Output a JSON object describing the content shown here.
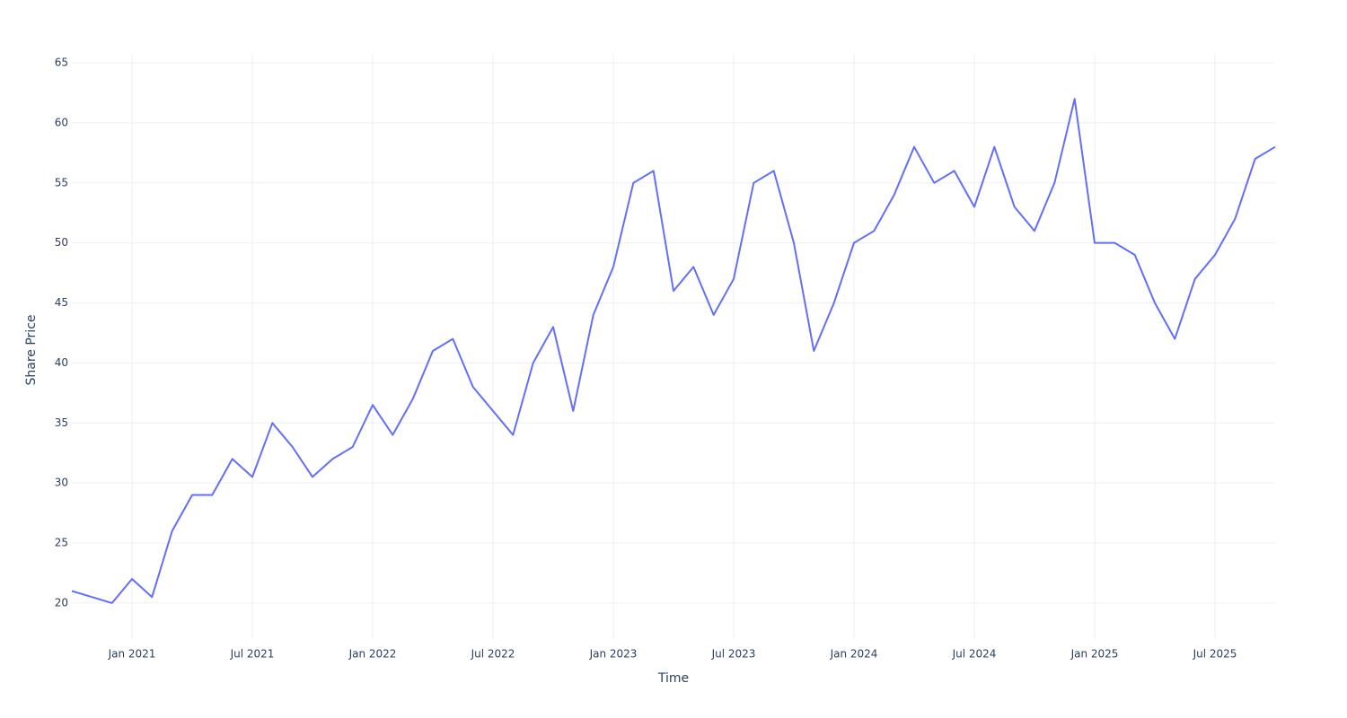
{
  "chart_data": {
    "type": "line",
    "x_label": "Time",
    "y_label": "Share Price",
    "x": [
      "2020-10",
      "2020-11",
      "2020-12",
      "2021-01",
      "2021-02",
      "2021-03",
      "2021-04",
      "2021-05",
      "2021-06",
      "2021-07",
      "2021-08",
      "2021-09",
      "2021-10",
      "2021-11",
      "2021-12",
      "2022-01",
      "2022-02",
      "2022-03",
      "2022-04",
      "2022-05",
      "2022-06",
      "2022-07",
      "2022-08",
      "2022-09",
      "2022-10",
      "2022-11",
      "2022-12",
      "2023-01",
      "2023-02",
      "2023-03",
      "2023-04",
      "2023-05",
      "2023-06",
      "2023-07",
      "2023-08",
      "2023-09",
      "2023-10",
      "2023-11",
      "2023-12",
      "2024-01",
      "2024-02",
      "2024-03",
      "2024-04",
      "2024-05",
      "2024-06",
      "2024-07",
      "2024-08",
      "2024-09",
      "2024-10",
      "2024-11",
      "2024-12",
      "2025-01",
      "2025-02",
      "2025-03",
      "2025-04",
      "2025-05",
      "2025-06",
      "2025-07",
      "2025-08",
      "2025-09",
      "2025-10"
    ],
    "series": [
      {
        "name": "Share Price",
        "color": "#636efa",
        "values": [
          21,
          20.5,
          20,
          22,
          20.5,
          26,
          29,
          29,
          32,
          30.5,
          35,
          33,
          30.5,
          32,
          33,
          36.5,
          34,
          37,
          41,
          42,
          38,
          36,
          34,
          40,
          43,
          36,
          44,
          48,
          55,
          56,
          46,
          48,
          44,
          47,
          55,
          56,
          50,
          41,
          45,
          50,
          51,
          54,
          58,
          55,
          56,
          53,
          58,
          53,
          51,
          55,
          62,
          50,
          50,
          49,
          45,
          42,
          47,
          49,
          52,
          57,
          58
        ]
      }
    ],
    "xlim": [
      "2020-10",
      "2025-10"
    ],
    "xticks": [
      {
        "value": "2021-01",
        "label": "Jan 2021"
      },
      {
        "value": "2021-07",
        "label": "Jul 2021"
      },
      {
        "value": "2022-01",
        "label": "Jan 2022"
      },
      {
        "value": "2022-07",
        "label": "Jul 2022"
      },
      {
        "value": "2023-01",
        "label": "Jan 2023"
      },
      {
        "value": "2023-07",
        "label": "Jul 2023"
      },
      {
        "value": "2024-01",
        "label": "Jan 2024"
      },
      {
        "value": "2024-07",
        "label": "Jul 2024"
      },
      {
        "value": "2025-01",
        "label": "Jan 2025"
      },
      {
        "value": "2025-07",
        "label": "Jul 2025"
      }
    ],
    "ylim": [
      17,
      65.75
    ],
    "yticks": [
      20,
      25,
      30,
      35,
      40,
      45,
      50,
      55,
      60,
      65
    ],
    "grid": true
  }
}
